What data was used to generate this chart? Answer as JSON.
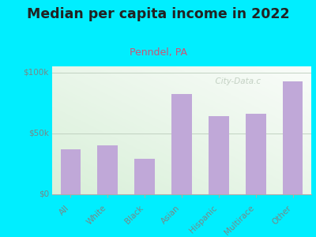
{
  "title": "Median per capita income in 2022",
  "subtitle": "Penndel, PA",
  "categories": [
    "All",
    "White",
    "Black",
    "Asian",
    "Hispanic",
    "Multirace",
    "Other"
  ],
  "values": [
    37000,
    40000,
    29000,
    82000,
    64000,
    66000,
    93000
  ],
  "bar_color": "#c0a8d8",
  "background_outer": "#00eeff",
  "background_inner": "#e8f5e0",
  "title_fontsize": 12.5,
  "subtitle_fontsize": 9,
  "subtitle_color": "#cc5577",
  "ylabel_ticks": [
    "$0",
    "$50k",
    "$100k"
  ],
  "ytick_vals": [
    0,
    50000,
    100000
  ],
  "ylim": [
    0,
    105000
  ],
  "watermark": "  City-Data.c",
  "title_color": "#222222",
  "tick_color": "#778888",
  "grid_color": "#bbccbb"
}
